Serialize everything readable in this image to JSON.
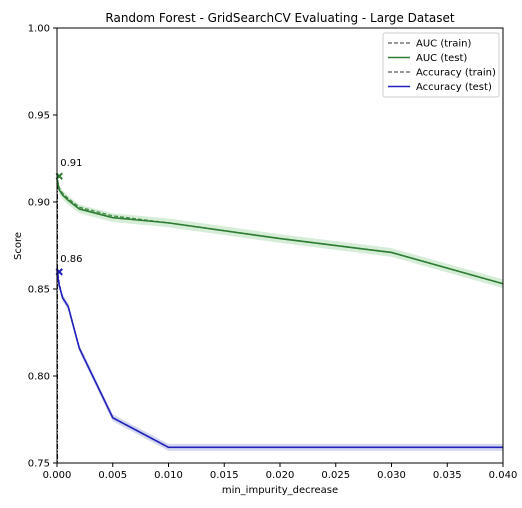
{
  "chart_data": {
    "type": "line",
    "title": "Random Forest - GridSearchCV Evaluating - Large Dataset",
    "xlabel": "min_impurity_decrease",
    "ylabel": "Score",
    "xlim": [
      0.0,
      0.04
    ],
    "ylim": [
      0.75,
      1.0
    ],
    "xticks": [
      0.0,
      0.005,
      0.01,
      0.015,
      0.02,
      0.025,
      0.03,
      0.035,
      0.04
    ],
    "xtick_labels": [
      "0.000",
      "0.005",
      "0.010",
      "0.015",
      "0.020",
      "0.025",
      "0.030",
      "0.035",
      "0.040"
    ],
    "yticks": [
      0.75,
      0.8,
      0.85,
      0.9,
      0.95,
      1.0
    ],
    "ytick_labels": [
      "0.75",
      "0.80",
      "0.85",
      "0.90",
      "0.95",
      "1.00"
    ],
    "grid": false,
    "legend_position": "top-right",
    "series": [
      {
        "name": "AUC (train)",
        "color": "#2e7d32",
        "linestyle": "dashed",
        "x": [
          0.0,
          0.0001,
          0.0002,
          0.0005,
          0.001,
          0.002,
          0.005,
          0.01,
          0.02,
          0.03,
          0.04
        ],
        "y": [
          0.916,
          0.911,
          0.908,
          0.905,
          0.902,
          0.897,
          0.892,
          0.888,
          0.879,
          0.871,
          0.853
        ]
      },
      {
        "name": "AUC (test)",
        "color": "#2e7d32",
        "linestyle": "solid",
        "x": [
          0.0,
          0.0001,
          0.0002,
          0.0005,
          0.001,
          0.002,
          0.005,
          0.01,
          0.02,
          0.03,
          0.04
        ],
        "y": [
          0.913,
          0.91,
          0.907,
          0.904,
          0.901,
          0.896,
          0.891,
          0.888,
          0.879,
          0.871,
          0.853
        ]
      },
      {
        "name": "Accuracy (train)",
        "color": "#2222bb",
        "linestyle": "dashed",
        "x": [
          0.0,
          0.0001,
          0.0002,
          0.0005,
          0.001,
          0.002,
          0.005,
          0.01,
          0.02,
          0.03,
          0.04
        ],
        "y": [
          0.862,
          0.858,
          0.853,
          0.845,
          0.84,
          0.816,
          0.776,
          0.759,
          0.759,
          0.759,
          0.759
        ]
      },
      {
        "name": "Accuracy (test)",
        "color": "#2222bb",
        "linestyle": "solid",
        "x": [
          0.0,
          0.0001,
          0.0002,
          0.0005,
          0.001,
          0.002,
          0.005,
          0.01,
          0.02,
          0.03,
          0.04
        ],
        "y": [
          0.86,
          0.856,
          0.852,
          0.845,
          0.84,
          0.816,
          0.776,
          0.759,
          0.759,
          0.759,
          0.759
        ]
      }
    ],
    "annotations": [
      {
        "text": "0.91",
        "x": 0.0002,
        "y": 0.916,
        "color": "#2e7d32"
      },
      {
        "text": "0.86",
        "x": 0.0002,
        "y": 0.861,
        "color": "#2222bb"
      }
    ],
    "vline_x": 0.0,
    "band_color": "#a5d6a7"
  }
}
